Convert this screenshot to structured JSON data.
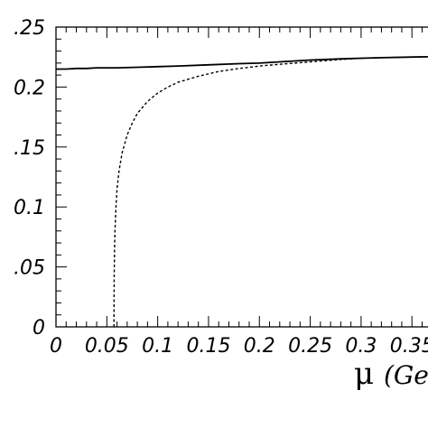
{
  "chart_data": {
    "type": "line",
    "title": "",
    "xlabel": "μ (Ge",
    "xlabel_symbol": "μ",
    "xlabel_unit": "(Ge",
    "ylabel": "",
    "xlim": [
      0,
      0.38
    ],
    "ylim": [
      0,
      0.25
    ],
    "x_tick_labels": [
      "0",
      "0.05",
      "0.1",
      "0.15",
      "0.2",
      "0.25",
      "0.3",
      "0.35"
    ],
    "x_tick_values": [
      0,
      0.05,
      0.1,
      0.15,
      0.2,
      0.25,
      0.3,
      0.35
    ],
    "y_tick_labels": [
      "0",
      "0.05",
      "0.1",
      "0.15",
      "0.2",
      "0.25"
    ],
    "y_tick_display": [
      "0",
      ".05",
      "0.1",
      ".15",
      "0.2",
      ".25"
    ],
    "y_tick_values": [
      0,
      0.05,
      0.1,
      0.15,
      0.2,
      0.25
    ],
    "grid": false,
    "series": [
      {
        "style": "solid",
        "color": "#000000",
        "x": [
          0,
          0.01,
          0.02,
          0.03,
          0.04,
          0.05,
          0.06,
          0.08,
          0.1,
          0.12,
          0.15,
          0.18,
          0.2,
          0.22,
          0.25,
          0.28,
          0.3,
          0.32,
          0.35,
          0.38
        ],
        "y": [
          0.215,
          0.215,
          0.2155,
          0.2155,
          0.216,
          0.216,
          0.216,
          0.2165,
          0.217,
          0.2175,
          0.2185,
          0.2195,
          0.22,
          0.221,
          0.2225,
          0.2235,
          0.224,
          0.2245,
          0.225,
          0.2255
        ]
      },
      {
        "style": "dashed",
        "color": "#000000",
        "x": [
          0.057,
          0.0572,
          0.0575,
          0.058,
          0.059,
          0.06,
          0.062,
          0.065,
          0.07,
          0.075,
          0.08,
          0.09,
          0.1,
          0.11,
          0.12,
          0.14,
          0.16,
          0.18,
          0.2,
          0.22,
          0.25,
          0.28,
          0.3,
          0.32,
          0.35,
          0.38
        ],
        "y": [
          0.0,
          0.04,
          0.06,
          0.08,
          0.1,
          0.115,
          0.13,
          0.145,
          0.16,
          0.17,
          0.178,
          0.188,
          0.195,
          0.2,
          0.204,
          0.209,
          0.213,
          0.2155,
          0.2175,
          0.219,
          0.221,
          0.223,
          0.224,
          0.2245,
          0.225,
          0.2255
        ]
      }
    ]
  }
}
